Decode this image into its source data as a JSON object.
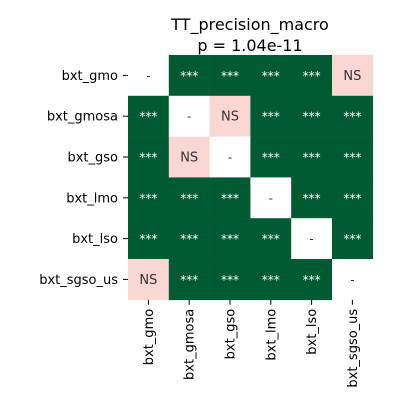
{
  "chart_data": {
    "type": "heatmap",
    "title": "TT_precision_macro",
    "subtitle": "p = 1.04e-11",
    "row_labels": [
      "bxt_gmo",
      "bxt_gmosa",
      "bxt_gso",
      "bxt_lmo",
      "bxt_lso",
      "bxt_sgso_us"
    ],
    "col_labels": [
      "bxt_gmo",
      "bxt_gmosa",
      "bxt_gso",
      "bxt_lmo",
      "bxt_lso",
      "bxt_sgso_us"
    ],
    "cells": [
      [
        "-",
        "***",
        "***",
        "***",
        "***",
        "NS"
      ],
      [
        "***",
        "-",
        "NS",
        "***",
        "***",
        "***"
      ],
      [
        "***",
        "NS",
        "-",
        "***",
        "***",
        "***"
      ],
      [
        "***",
        "***",
        "***",
        "-",
        "***",
        "***"
      ],
      [
        "***",
        "***",
        "***",
        "***",
        "-",
        "***"
      ],
      [
        "NS",
        "***",
        "***",
        "***",
        "***",
        "-"
      ]
    ],
    "colors": {
      "***": "#005a32",
      "NS": "#fbd7d4",
      "-": "#ffffff"
    },
    "text_colors": {
      "***": "#ffffff",
      "NS": "#333333",
      "-": "#333333"
    },
    "grid": false,
    "legend": "none"
  }
}
